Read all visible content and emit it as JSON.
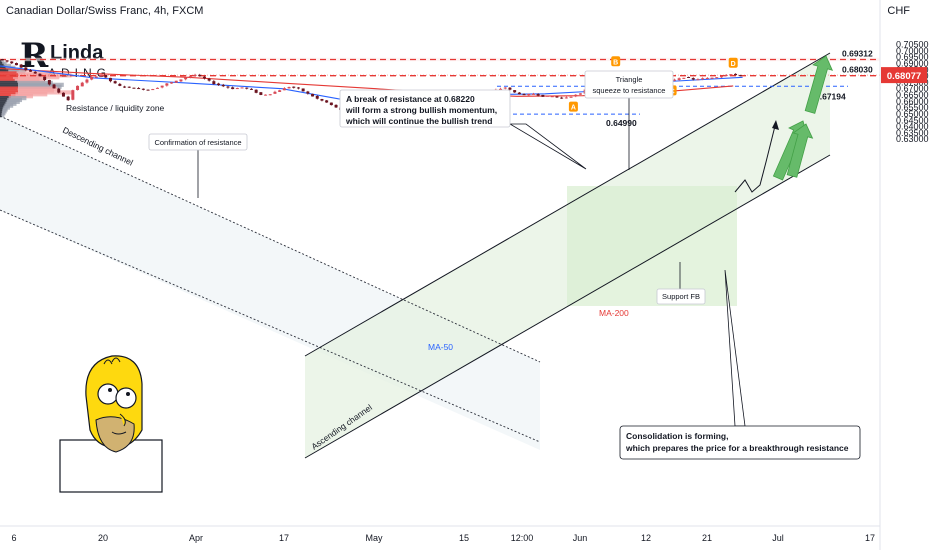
{
  "header": {
    "title": "Canadian Dollar/Swiss Franc, 4h, FXCM",
    "currency": "CHF"
  },
  "logo": {
    "mark": "R",
    "top": "Linda",
    "bottom": "ADING"
  },
  "chart_data": {
    "type": "candlestick",
    "symbol": "CADCHF",
    "timeframe": "4h",
    "ylim": [
      0.6275,
      0.7085
    ],
    "x_ticks": [
      "6",
      "20",
      "Apr",
      "17",
      "May",
      "15",
      "12:00",
      "Jun",
      "12",
      "21",
      "Jul",
      "17"
    ],
    "y_ticks": [
      "0.70500",
      "0.70000",
      "0.69500",
      "0.69000",
      "0.68500",
      "0.68000",
      "0.67500",
      "0.67000",
      "0.66500",
      "0.66000",
      "0.65500",
      "0.65000",
      "0.64500",
      "0.64000",
      "0.63500",
      "0.63000"
    ],
    "current_price": {
      "value": 0.68077,
      "label": "0.68077"
    },
    "path_points": [
      [
        0,
        0.6935
      ],
      [
        2,
        0.6915
      ],
      [
        4,
        0.689
      ],
      [
        6,
        0.685
      ],
      [
        8,
        0.682
      ],
      [
        10,
        0.677
      ],
      [
        12,
        0.67
      ],
      [
        14,
        0.664
      ],
      [
        15,
        0.661
      ],
      [
        16,
        0.669
      ],
      [
        18,
        0.675
      ],
      [
        20,
        0.679
      ],
      [
        22,
        0.681
      ],
      [
        24,
        0.676
      ],
      [
        26,
        0.672
      ],
      [
        28,
        0.671
      ],
      [
        30,
        0.67
      ],
      [
        32,
        0.669
      ],
      [
        34,
        0.671
      ],
      [
        36,
        0.674
      ],
      [
        38,
        0.676
      ],
      [
        40,
        0.679
      ],
      [
        42,
        0.681
      ],
      [
        44,
        0.678
      ],
      [
        46,
        0.674
      ],
      [
        48,
        0.672
      ],
      [
        50,
        0.67
      ],
      [
        52,
        0.671
      ],
      [
        54,
        0.669
      ],
      [
        56,
        0.665
      ],
      [
        58,
        0.666
      ],
      [
        60,
        0.669
      ],
      [
        62,
        0.6715
      ],
      [
        64,
        0.67
      ],
      [
        66,
        0.666
      ],
      [
        68,
        0.662
      ],
      [
        70,
        0.659
      ],
      [
        72,
        0.655
      ],
      [
        74,
        0.6515
      ],
      [
        76,
        0.65
      ],
      [
        78,
        0.654
      ],
      [
        80,
        0.656
      ],
      [
        82,
        0.66
      ],
      [
        84,
        0.6625
      ],
      [
        85,
        0.66
      ],
      [
        86,
        0.656
      ],
      [
        87,
        0.652
      ],
      [
        88,
        0.6495
      ],
      [
        89,
        0.652
      ],
      [
        90,
        0.656
      ],
      [
        92,
        0.663
      ],
      [
        94,
        0.667
      ],
      [
        96,
        0.666
      ],
      [
        98,
        0.667
      ],
      [
        100,
        0.665
      ],
      [
        102,
        0.664
      ],
      [
        104,
        0.665
      ],
      [
        106,
        0.669
      ],
      [
        108,
        0.671
      ],
      [
        110,
        0.667
      ],
      [
        112,
        0.665
      ],
      [
        114,
        0.666
      ],
      [
        116,
        0.664
      ],
      [
        118,
        0.664
      ],
      [
        120,
        0.6625
      ],
      [
        122,
        0.664
      ],
      [
        124,
        0.666
      ],
      [
        126,
        0.673
      ],
      [
        128,
        0.679
      ],
      [
        130,
        0.683
      ],
      [
        132,
        0.679
      ],
      [
        134,
        0.681
      ],
      [
        136,
        0.676
      ],
      [
        138,
        0.677
      ],
      [
        140,
        0.679
      ],
      [
        142,
        0.676
      ],
      [
        144,
        0.677
      ],
      [
        146,
        0.679
      ],
      [
        148,
        0.6775
      ],
      [
        150,
        0.678
      ],
      [
        152,
        0.679
      ],
      [
        154,
        0.68
      ],
      [
        156,
        0.6818
      ],
      [
        158,
        0.68
      ]
    ],
    "ma50": {
      "label": "MA-50",
      "color": "#2962ff",
      "points": [
        [
          0,
          0.688
        ],
        [
          20,
          0.6785
        ],
        [
          40,
          0.6745
        ],
        [
          60,
          0.67
        ],
        [
          72,
          0.662
        ],
        [
          80,
          0.6575
        ],
        [
          88,
          0.657
        ],
        [
          96,
          0.6625
        ],
        [
          106,
          0.6655
        ],
        [
          116,
          0.666
        ],
        [
          126,
          0.668
        ],
        [
          136,
          0.6745
        ],
        [
          146,
          0.6765
        ],
        [
          158,
          0.679
        ]
      ]
    },
    "ma200": {
      "label": "MA-200",
      "color": "#e53935",
      "points": [
        [
          0,
          0.686
        ],
        [
          20,
          0.682
        ],
        [
          40,
          0.679
        ],
        [
          60,
          0.6745
        ],
        [
          80,
          0.67
        ],
        [
          96,
          0.666
        ],
        [
          110,
          0.664
        ],
        [
          124,
          0.6645
        ],
        [
          136,
          0.666
        ],
        [
          146,
          0.669
        ],
        [
          156,
          0.6722
        ]
      ]
    },
    "levels": [
      {
        "value": 0.69312,
        "label": "0.69312",
        "style": "red-dashed"
      },
      {
        "value": 0.6803,
        "label": "0.68030",
        "style": "red-dashed"
      },
      {
        "value": 0.67194,
        "label": "0.67194",
        "style": "blue-dashed"
      },
      {
        "value": 0.6499,
        "label": "0.64990",
        "style": "blue-dashed"
      }
    ],
    "volume_profile": [
      0.691,
      0.6895,
      0.688,
      0.6865,
      0.685,
      0.6835,
      0.682,
      0.6805,
      0.679,
      0.6775,
      0.676,
      0.6745,
      0.673,
      0.6715,
      0.67,
      0.6685,
      0.667,
      0.6655,
      0.664,
      0.6625,
      0.661,
      0.6595,
      0.658,
      0.6565,
      0.655,
      0.6535,
      0.652,
      0.6505,
      0.649
    ],
    "volume_widths": [
      8,
      12,
      20,
      28,
      34,
      46,
      92,
      130,
      108,
      72,
      82,
      96,
      116,
      112,
      104,
      98,
      132,
      86,
      60,
      48,
      40,
      36,
      30,
      24,
      18,
      14,
      12,
      10,
      8
    ],
    "pattern_points": [
      {
        "label": "A",
        "t": 122,
        "value": 0.6622
      },
      {
        "label": "B",
        "t": 131,
        "value": 0.6838
      },
      {
        "label": "C",
        "t": 143,
        "value": 0.675
      },
      {
        "label": "D",
        "t": 156,
        "value": 0.6826
      }
    ]
  },
  "annotations": {
    "resistance_zone": "Resistance / liquidity zone",
    "descending_channel": "Descending channel",
    "ascending_channel": "Ascending channel",
    "confirmation": "Confirmation of resistance",
    "triangle_line1": "Triangle",
    "triangle_line2": "squeeze to resistance",
    "break_line1": "A break of resistance at 0.68220",
    "break_line2": "will form a strong bullish momentum,",
    "break_line3": "which will continue the bullish trend",
    "support_fb": "Support FB",
    "ma50_label": "MA-50",
    "ma200_label": "MA-200",
    "consolidation_line1": "Consolidation is forming,",
    "consolidation_line2": "which prepares the price for a breakthrough resistance"
  },
  "colors": {
    "up": "#26a69a",
    "down": "#ef5350",
    "candle": "#7a1f2a",
    "resistance": "#e53935",
    "support": "#2962ff",
    "channel": "#131722",
    "zone": "#d8eed0",
    "arrow": "#66bb6a"
  }
}
